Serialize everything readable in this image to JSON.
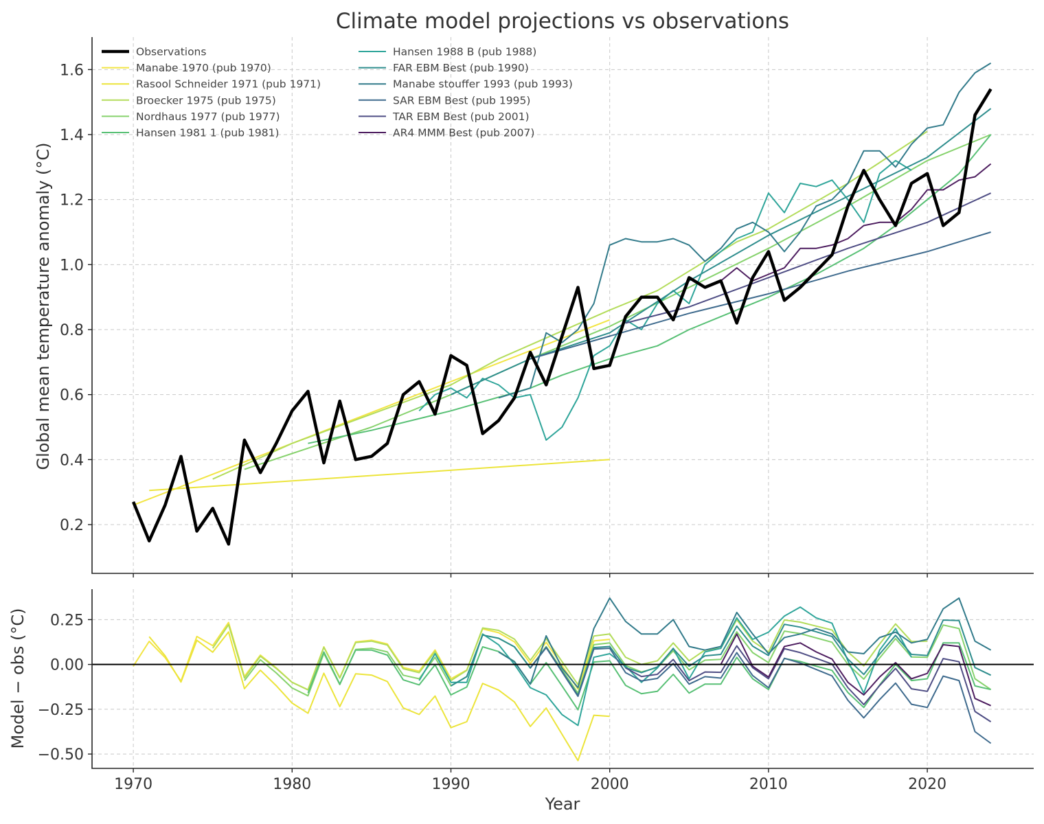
{
  "chart_data": {
    "type": "line",
    "title": "Climate model projections vs observations",
    "xlabel": "Year",
    "panels": {
      "main": {
        "ylabel": "Global mean temperature anomaly (°C)",
        "ylim": [
          0.05,
          1.7
        ],
        "yticks": [
          "0.2",
          "0.4",
          "0.6",
          "0.8",
          "1.0",
          "1.2",
          "1.4",
          "1.6"
        ]
      },
      "residual": {
        "ylabel": "Model − obs (°C)",
        "ylim": [
          -0.58,
          0.42
        ],
        "yticks": [
          "0.25",
          "0.00",
          "−0.25",
          "−0.50"
        ],
        "zero_line": true
      }
    },
    "xlim": [
      1967.4,
      2026.7
    ],
    "xticks": [
      "1970",
      "1980",
      "1990",
      "2000",
      "2010",
      "2020"
    ],
    "grid": true,
    "legend_location": "top-left",
    "observations": {
      "name": "Observations",
      "color": "#000000",
      "x": [
        1970,
        1971,
        1972,
        1973,
        1974,
        1975,
        1976,
        1977,
        1978,
        1979,
        1980,
        1981,
        1982,
        1983,
        1984,
        1985,
        1986,
        1987,
        1988,
        1989,
        1990,
        1991,
        1992,
        1993,
        1994,
        1995,
        1996,
        1997,
        1998,
        1999,
        2000,
        2001,
        2002,
        2003,
        2004,
        2005,
        2006,
        2007,
        2008,
        2009,
        2010,
        2011,
        2012,
        2013,
        2014,
        2015,
        2016,
        2017,
        2018,
        2019,
        2020,
        2021,
        2022,
        2023,
        2024
      ],
      "y": [
        0.27,
        0.15,
        0.26,
        0.41,
        0.18,
        0.25,
        0.14,
        0.46,
        0.36,
        0.45,
        0.55,
        0.61,
        0.39,
        0.58,
        0.4,
        0.41,
        0.45,
        0.6,
        0.64,
        0.54,
        0.72,
        0.69,
        0.48,
        0.52,
        0.59,
        0.73,
        0.63,
        0.78,
        0.93,
        0.68,
        0.69,
        0.84,
        0.9,
        0.9,
        0.83,
        0.96,
        0.93,
        0.95,
        0.82,
        0.96,
        1.04,
        0.89,
        0.93,
        0.98,
        1.03,
        1.18,
        1.29,
        1.2,
        1.12,
        1.25,
        1.28,
        1.12,
        1.16,
        1.46,
        1.54
      ]
    },
    "series": [
      {
        "name": "Manabe 1970 (pub 1970)",
        "color": "#f2e544",
        "x": [
          1970,
          2000
        ],
        "y": [
          0.26,
          0.83
        ]
      },
      {
        "name": "Rasool Schneider 1971 (pub 1971)",
        "color": "#ece43a",
        "x": [
          1971,
          2000
        ],
        "y": [
          0.305,
          0.4
        ]
      },
      {
        "name": "Broecker 1975 (pub 1975)",
        "color": "#b3dc5a",
        "x": [
          1975,
          1980,
          1985,
          1990,
          1993,
          2000,
          2003,
          2005,
          2008,
          2010,
          2015,
          2020
        ],
        "y": [
          0.34,
          0.45,
          0.54,
          0.63,
          0.71,
          0.86,
          0.92,
          0.98,
          1.07,
          1.11,
          1.25,
          1.41
        ]
      },
      {
        "name": "Nordhaus 1977 (pub 1977)",
        "color": "#86d26c",
        "x": [
          1977,
          1985,
          1990,
          1995,
          2000,
          2005,
          2010,
          2015,
          2020,
          2024
        ],
        "y": [
          0.37,
          0.5,
          0.6,
          0.71,
          0.81,
          0.93,
          1.05,
          1.18,
          1.32,
          1.4
        ]
      },
      {
        "name": "Hansen 1981 1 (pub 1981)",
        "color": "#58c075",
        "x": [
          1981,
          1985,
          1990,
          1995,
          1997,
          2000,
          2003,
          2005,
          2008,
          2010,
          2013,
          2016,
          2018,
          2020,
          2022,
          2024
        ],
        "y": [
          0.45,
          0.49,
          0.55,
          0.62,
          0.66,
          0.71,
          0.75,
          0.8,
          0.86,
          0.9,
          0.97,
          1.05,
          1.12,
          1.2,
          1.28,
          1.4
        ]
      },
      {
        "name": "Hansen 1988 B (pub 1988)",
        "color": "#2fa59a",
        "x": [
          1988,
          1989,
          1990,
          1991,
          1992,
          1993,
          1994,
          1995,
          1996,
          1997,
          1998,
          1999,
          2000,
          2001,
          2002,
          2003,
          2004,
          2005,
          2006,
          2007,
          2008,
          2009,
          2010,
          2011,
          2012,
          2013,
          2014,
          2015,
          2016,
          2017,
          2018,
          2019
        ],
        "y": [
          0.55,
          0.6,
          0.62,
          0.59,
          0.65,
          0.63,
          0.59,
          0.6,
          0.46,
          0.5,
          0.59,
          0.72,
          0.75,
          0.83,
          0.8,
          0.88,
          0.92,
          0.88,
          1.0,
          1.04,
          1.08,
          1.1,
          1.22,
          1.16,
          1.25,
          1.24,
          1.26,
          1.2,
          1.13,
          1.28,
          1.32,
          1.29
        ]
      },
      {
        "name": "FAR EBM Best (pub 1990)",
        "color": "#2e8d8d",
        "x": [
          1990,
          1995,
          2000,
          2005,
          2010,
          2015,
          2020,
          2024
        ],
        "y": [
          0.6,
          0.71,
          0.79,
          0.95,
          1.09,
          1.21,
          1.33,
          1.48
        ]
      },
      {
        "name": "Manabe stouffer 1993 (pub 1993)",
        "color": "#317a8a",
        "x": [
          1993,
          1995,
          1996,
          1997,
          1998,
          1999,
          2000,
          2001,
          2002,
          2003,
          2004,
          2005,
          2006,
          2007,
          2008,
          2009,
          2010,
          2011,
          2012,
          2013,
          2014,
          2015,
          2016,
          2017,
          2018,
          2019,
          2020,
          2021,
          2022,
          2023,
          2024
        ],
        "y": [
          0.59,
          0.62,
          0.79,
          0.76,
          0.8,
          0.88,
          1.06,
          1.08,
          1.07,
          1.07,
          1.08,
          1.06,
          1.01,
          1.05,
          1.11,
          1.13,
          1.1,
          1.04,
          1.1,
          1.18,
          1.2,
          1.25,
          1.35,
          1.35,
          1.3,
          1.37,
          1.42,
          1.43,
          1.53,
          1.59,
          1.62
        ]
      },
      {
        "name": "SAR EBM Best (pub 1995)",
        "color": "#3e6a8d",
        "x": [
          1995,
          2000,
          2005,
          2010,
          2015,
          2020,
          2024
        ],
        "y": [
          0.71,
          0.78,
          0.85,
          0.91,
          0.98,
          1.04,
          1.1
        ]
      },
      {
        "name": "TAR EBM Best (pub 2001)",
        "color": "#4e4d84",
        "x": [
          2001,
          2005,
          2010,
          2015,
          2020,
          2024
        ],
        "y": [
          0.82,
          0.87,
          0.96,
          1.05,
          1.13,
          1.22
        ]
      },
      {
        "name": "AR4 MMM Best (pub 2007)",
        "color": "#4d1d5f",
        "x": [
          2007,
          2008,
          2009,
          2010,
          2011,
          2012,
          2013,
          2014,
          2015,
          2016,
          2017,
          2018,
          2019,
          2020,
          2021,
          2022,
          2023,
          2024
        ],
        "y": [
          0.95,
          0.99,
          0.95,
          0.97,
          0.99,
          1.05,
          1.05,
          1.06,
          1.08,
          1.12,
          1.13,
          1.13,
          1.17,
          1.23,
          1.23,
          1.26,
          1.27,
          1.31
        ]
      }
    ]
  }
}
